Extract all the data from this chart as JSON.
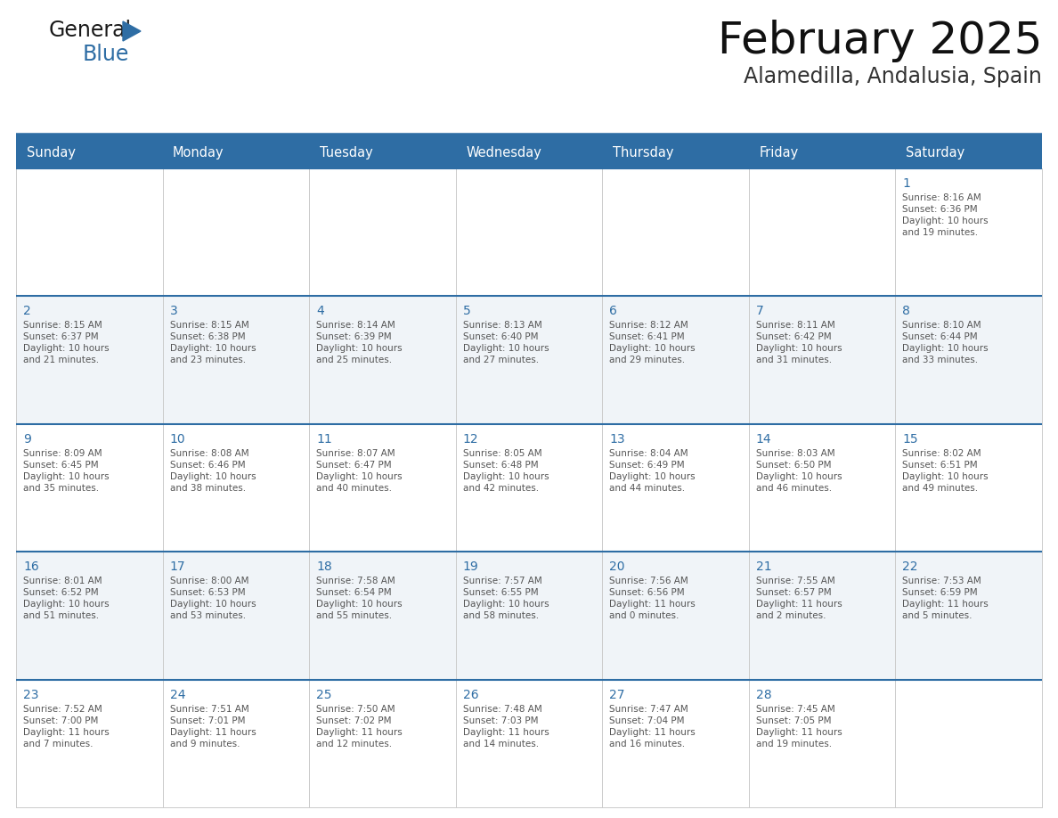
{
  "title": "February 2025",
  "subtitle": "Alamedilla, Andalusia, Spain",
  "days_of_week": [
    "Sunday",
    "Monday",
    "Tuesday",
    "Wednesday",
    "Thursday",
    "Friday",
    "Saturday"
  ],
  "header_bg": "#2E6DA4",
  "header_text_color": "#FFFFFF",
  "cell_bg_light": "#F0F4F8",
  "cell_bg_white": "#FFFFFF",
  "cell_border_top_color": "#2E6DA4",
  "cell_border_color": "#CCCCCC",
  "day_num_color": "#2E6DA4",
  "cell_text_color": "#555555",
  "title_color": "#111111",
  "subtitle_color": "#333333",
  "separator_color": "#2E6DA4",
  "calendar_data": [
    {
      "day": 1,
      "week_row": 0,
      "col": 6,
      "sunrise": "8:16 AM",
      "sunset": "6:36 PM",
      "daylight": "10 hours and 19 minutes."
    },
    {
      "day": 2,
      "week_row": 1,
      "col": 0,
      "sunrise": "8:15 AM",
      "sunset": "6:37 PM",
      "daylight": "10 hours and 21 minutes."
    },
    {
      "day": 3,
      "week_row": 1,
      "col": 1,
      "sunrise": "8:15 AM",
      "sunset": "6:38 PM",
      "daylight": "10 hours and 23 minutes."
    },
    {
      "day": 4,
      "week_row": 1,
      "col": 2,
      "sunrise": "8:14 AM",
      "sunset": "6:39 PM",
      "daylight": "10 hours and 25 minutes."
    },
    {
      "day": 5,
      "week_row": 1,
      "col": 3,
      "sunrise": "8:13 AM",
      "sunset": "6:40 PM",
      "daylight": "10 hours and 27 minutes."
    },
    {
      "day": 6,
      "week_row": 1,
      "col": 4,
      "sunrise": "8:12 AM",
      "sunset": "6:41 PM",
      "daylight": "10 hours and 29 minutes."
    },
    {
      "day": 7,
      "week_row": 1,
      "col": 5,
      "sunrise": "8:11 AM",
      "sunset": "6:42 PM",
      "daylight": "10 hours and 31 minutes."
    },
    {
      "day": 8,
      "week_row": 1,
      "col": 6,
      "sunrise": "8:10 AM",
      "sunset": "6:44 PM",
      "daylight": "10 hours and 33 minutes."
    },
    {
      "day": 9,
      "week_row": 2,
      "col": 0,
      "sunrise": "8:09 AM",
      "sunset": "6:45 PM",
      "daylight": "10 hours and 35 minutes."
    },
    {
      "day": 10,
      "week_row": 2,
      "col": 1,
      "sunrise": "8:08 AM",
      "sunset": "6:46 PM",
      "daylight": "10 hours and 38 minutes."
    },
    {
      "day": 11,
      "week_row": 2,
      "col": 2,
      "sunrise": "8:07 AM",
      "sunset": "6:47 PM",
      "daylight": "10 hours and 40 minutes."
    },
    {
      "day": 12,
      "week_row": 2,
      "col": 3,
      "sunrise": "8:05 AM",
      "sunset": "6:48 PM",
      "daylight": "10 hours and 42 minutes."
    },
    {
      "day": 13,
      "week_row": 2,
      "col": 4,
      "sunrise": "8:04 AM",
      "sunset": "6:49 PM",
      "daylight": "10 hours and 44 minutes."
    },
    {
      "day": 14,
      "week_row": 2,
      "col": 5,
      "sunrise": "8:03 AM",
      "sunset": "6:50 PM",
      "daylight": "10 hours and 46 minutes."
    },
    {
      "day": 15,
      "week_row": 2,
      "col": 6,
      "sunrise": "8:02 AM",
      "sunset": "6:51 PM",
      "daylight": "10 hours and 49 minutes."
    },
    {
      "day": 16,
      "week_row": 3,
      "col": 0,
      "sunrise": "8:01 AM",
      "sunset": "6:52 PM",
      "daylight": "10 hours and 51 minutes."
    },
    {
      "day": 17,
      "week_row": 3,
      "col": 1,
      "sunrise": "8:00 AM",
      "sunset": "6:53 PM",
      "daylight": "10 hours and 53 minutes."
    },
    {
      "day": 18,
      "week_row": 3,
      "col": 2,
      "sunrise": "7:58 AM",
      "sunset": "6:54 PM",
      "daylight": "10 hours and 55 minutes."
    },
    {
      "day": 19,
      "week_row": 3,
      "col": 3,
      "sunrise": "7:57 AM",
      "sunset": "6:55 PM",
      "daylight": "10 hours and 58 minutes."
    },
    {
      "day": 20,
      "week_row": 3,
      "col": 4,
      "sunrise": "7:56 AM",
      "sunset": "6:56 PM",
      "daylight": "11 hours and 0 minutes."
    },
    {
      "day": 21,
      "week_row": 3,
      "col": 5,
      "sunrise": "7:55 AM",
      "sunset": "6:57 PM",
      "daylight": "11 hours and 2 minutes."
    },
    {
      "day": 22,
      "week_row": 3,
      "col": 6,
      "sunrise": "7:53 AM",
      "sunset": "6:59 PM",
      "daylight": "11 hours and 5 minutes."
    },
    {
      "day": 23,
      "week_row": 4,
      "col": 0,
      "sunrise": "7:52 AM",
      "sunset": "7:00 PM",
      "daylight": "11 hours and 7 minutes."
    },
    {
      "day": 24,
      "week_row": 4,
      "col": 1,
      "sunrise": "7:51 AM",
      "sunset": "7:01 PM",
      "daylight": "11 hours and 9 minutes."
    },
    {
      "day": 25,
      "week_row": 4,
      "col": 2,
      "sunrise": "7:50 AM",
      "sunset": "7:02 PM",
      "daylight": "11 hours and 12 minutes."
    },
    {
      "day": 26,
      "week_row": 4,
      "col": 3,
      "sunrise": "7:48 AM",
      "sunset": "7:03 PM",
      "daylight": "11 hours and 14 minutes."
    },
    {
      "day": 27,
      "week_row": 4,
      "col": 4,
      "sunrise": "7:47 AM",
      "sunset": "7:04 PM",
      "daylight": "11 hours and 16 minutes."
    },
    {
      "day": 28,
      "week_row": 4,
      "col": 5,
      "sunrise": "7:45 AM",
      "sunset": "7:05 PM",
      "daylight": "11 hours and 19 minutes."
    }
  ],
  "num_rows": 5,
  "num_cols": 7
}
